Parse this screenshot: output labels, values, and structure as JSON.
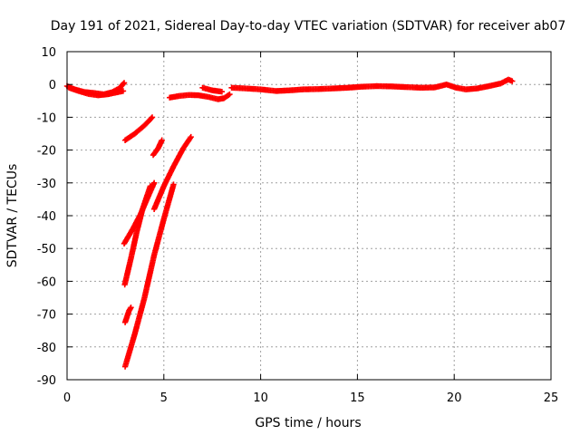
{
  "chart_data": {
    "type": "scatter",
    "title": "Day 191 of 2021, Sidereal Day-to-day VTEC variation (SDTVAR) for receiver ab07",
    "xlabel": "GPS time / hours",
    "ylabel": "SDTVAR / TECUs",
    "xlim": [
      0,
      25
    ],
    "ylim": [
      -90,
      10
    ],
    "xticks": [
      0,
      5,
      10,
      15,
      20,
      25
    ],
    "yticks": [
      10,
      0,
      -10,
      -20,
      -30,
      -40,
      -50,
      -60,
      -70,
      -80,
      -90
    ],
    "grid": true,
    "marker": "plus",
    "color": "#ff0000",
    "series": [
      {
        "segments": [
          [
            [
              0.0,
              -0.5
            ],
            [
              0.4,
              -1.5
            ],
            [
              0.9,
              -2.3
            ],
            [
              1.4,
              -2.6
            ],
            [
              1.9,
              -3.0
            ],
            [
              2.3,
              -2.4
            ],
            [
              2.7,
              -1.2
            ],
            [
              2.95,
              0.5
            ]
          ],
          [
            [
              0.1,
              -1.0
            ],
            [
              0.6,
              -2.0
            ],
            [
              1.1,
              -2.9
            ],
            [
              1.6,
              -3.3
            ],
            [
              2.1,
              -3.0
            ],
            [
              2.5,
              -2.5
            ],
            [
              2.9,
              -2.0
            ]
          ],
          [
            [
              3.0,
              -17.0
            ],
            [
              3.5,
              -15.0
            ],
            [
              4.0,
              -12.5
            ],
            [
              4.4,
              -10.0
            ]
          ],
          [
            [
              4.45,
              -21.5
            ],
            [
              4.7,
              -19.5
            ],
            [
              4.9,
              -17.0
            ]
          ],
          [
            [
              2.95,
              -48.5
            ],
            [
              3.4,
              -44.0
            ],
            [
              3.8,
              -39.5
            ],
            [
              4.2,
              -34.0
            ],
            [
              4.5,
              -30.0
            ]
          ],
          [
            [
              2.98,
              -61.0
            ],
            [
              3.3,
              -53.0
            ],
            [
              3.6,
              -45.0
            ],
            [
              3.9,
              -38.0
            ],
            [
              4.3,
              -31.0
            ]
          ],
          [
            [
              3.0,
              -72.5
            ],
            [
              3.2,
              -69.0
            ],
            [
              3.3,
              -68.0
            ]
          ],
          [
            [
              3.0,
              -86.0
            ],
            [
              3.5,
              -76.0
            ],
            [
              4.0,
              -65.0
            ],
            [
              4.5,
              -52.0
            ],
            [
              5.0,
              -41.0
            ],
            [
              5.5,
              -30.5
            ]
          ],
          [
            [
              4.5,
              -38.0
            ],
            [
              5.0,
              -31.0
            ],
            [
              5.5,
              -25.0
            ],
            [
              6.0,
              -19.5
            ],
            [
              6.4,
              -16.0
            ]
          ],
          [
            [
              5.3,
              -4.0
            ],
            [
              5.8,
              -3.5
            ],
            [
              6.3,
              -3.2
            ],
            [
              6.8,
              -3.3
            ],
            [
              7.3,
              -3.8
            ],
            [
              7.8,
              -4.5
            ],
            [
              8.1,
              -4.2
            ],
            [
              8.4,
              -3.0
            ]
          ],
          [
            [
              7.0,
              -1.0
            ],
            [
              7.5,
              -1.8
            ],
            [
              8.0,
              -2.2
            ]
          ],
          [
            [
              8.5,
              -1.0
            ],
            [
              9.2,
              -1.2
            ],
            [
              10.0,
              -1.5
            ],
            [
              10.8,
              -2.0
            ],
            [
              11.5,
              -1.8
            ],
            [
              12.2,
              -1.5
            ],
            [
              13.0,
              -1.4
            ],
            [
              13.8,
              -1.2
            ],
            [
              14.5,
              -1.0
            ],
            [
              15.2,
              -0.7
            ],
            [
              16.0,
              -0.5
            ],
            [
              16.8,
              -0.6
            ],
            [
              17.5,
              -0.8
            ],
            [
              18.3,
              -1.0
            ],
            [
              19.0,
              -0.9
            ],
            [
              19.6,
              0.0
            ],
            [
              20.1,
              -1.0
            ],
            [
              20.6,
              -1.5
            ],
            [
              21.2,
              -1.2
            ],
            [
              21.8,
              -0.5
            ],
            [
              22.4,
              0.3
            ],
            [
              22.8,
              1.5
            ],
            [
              23.0,
              1.0
            ]
          ]
        ]
      }
    ]
  }
}
